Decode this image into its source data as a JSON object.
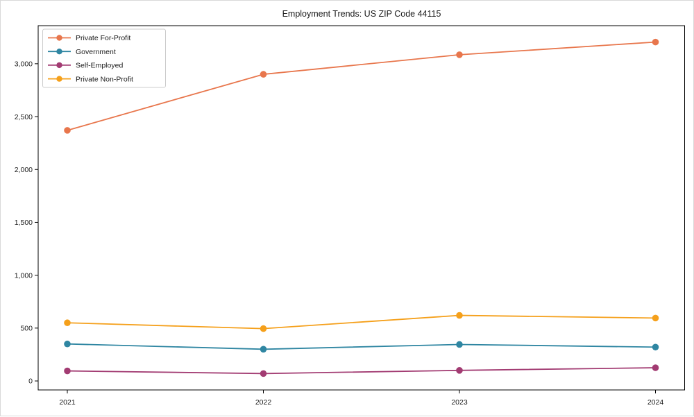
{
  "figure": {
    "background": "#ffffff",
    "border_color": "#d9d9d9"
  },
  "chart_data": {
    "type": "line",
    "title": "Employment Trends: US ZIP Code 44115",
    "xlabel": "",
    "ylabel": "",
    "categories": [
      "2021",
      "2022",
      "2023",
      "2024"
    ],
    "series": [
      {
        "name": "Private For-Profit",
        "color": "#E8764C",
        "values": [
          2370,
          2900,
          3085,
          3205
        ]
      },
      {
        "name": "Government",
        "color": "#2F86A2",
        "values": [
          350,
          300,
          345,
          320
        ]
      },
      {
        "name": "Self-Employed",
        "color": "#A23B72",
        "values": [
          95,
          70,
          100,
          125
        ]
      },
      {
        "name": "Private Non-Profit",
        "color": "#F5A01B",
        "values": [
          550,
          495,
          620,
          595
        ]
      }
    ],
    "ylim": [
      -85,
      3360
    ],
    "yticks": [
      {
        "value": 0,
        "label": "0"
      },
      {
        "value": 500,
        "label": "500"
      },
      {
        "value": 1000,
        "label": "1,000"
      },
      {
        "value": 1500,
        "label": "1,500"
      },
      {
        "value": 2000,
        "label": "2,000"
      },
      {
        "value": 2500,
        "label": "2,500"
      },
      {
        "value": 3000,
        "label": "3,000"
      }
    ],
    "grid": false,
    "marker": "circle",
    "legend_position": "upper-left",
    "axis_color": "#000000",
    "tick_label_color": "#1a1a1a",
    "legend_border_color": "#cccccc",
    "legend_background": "#ffffff"
  }
}
